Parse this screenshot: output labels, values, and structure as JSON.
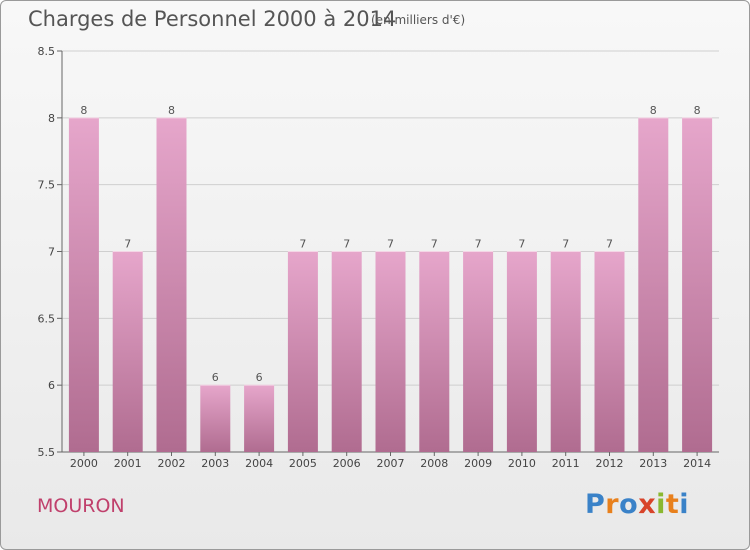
{
  "header": {
    "title": "Charges de Personnel 2000 à 2014",
    "subtitle": "(en milliers d'€)"
  },
  "footer": {
    "commune": "MOURON",
    "logo": "Proxiti"
  },
  "colors": {
    "bar_top": "#e6a6cb",
    "bar_bottom": "#b06c90",
    "commune": "#c0406c",
    "logo_letters": [
      "#3a82c8",
      "#e8801c",
      "#3a82c8",
      "#d8442a",
      "#8ab830",
      "#e8801c",
      "#3a82c8"
    ]
  },
  "chart_data": {
    "type": "bar",
    "title": "Charges de Personnel 2000 à 2014",
    "subtitle": "(en milliers d'€)",
    "categories": [
      "2000",
      "2001",
      "2002",
      "2003",
      "2004",
      "2005",
      "2006",
      "2007",
      "2008",
      "2009",
      "2010",
      "2011",
      "2012",
      "2013",
      "2014"
    ],
    "values": [
      8,
      7,
      8,
      6,
      6,
      7,
      7,
      7,
      7,
      7,
      7,
      7,
      7,
      8,
      8
    ],
    "data_labels": [
      "8",
      "7",
      "8",
      "6",
      "6",
      "7",
      "7",
      "7",
      "7",
      "7",
      "7",
      "7",
      "7",
      "8",
      "8"
    ],
    "ylim": [
      5.5,
      8.5
    ],
    "yticks": [
      5.5,
      6,
      6.5,
      7,
      7.5,
      8,
      8.5
    ],
    "ytick_labels": [
      "5.5",
      "6",
      "6.5",
      "7",
      "7.5",
      "8",
      "8.5"
    ],
    "grid": "horizontal",
    "xlabel": "",
    "ylabel": ""
  }
}
